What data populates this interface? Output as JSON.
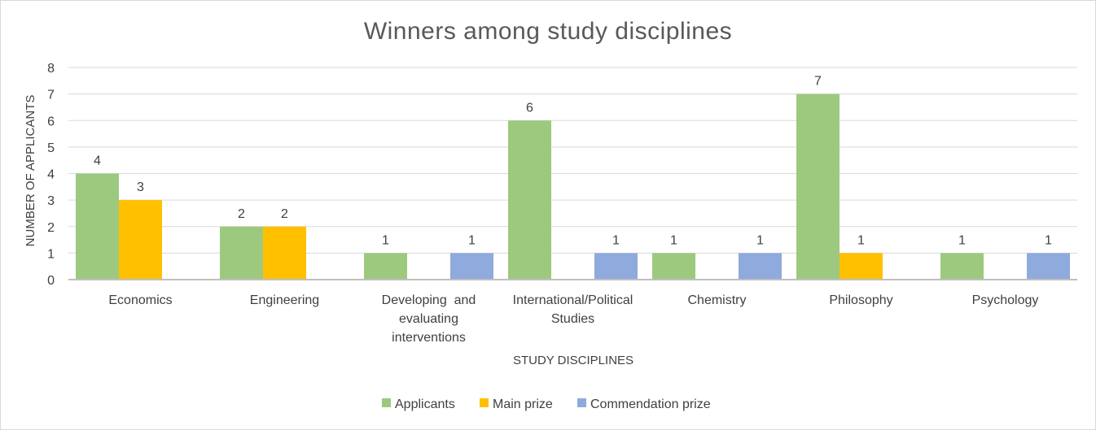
{
  "chart_data": {
    "type": "bar",
    "title": "Winners among study disciplines",
    "xlabel": "STUDY DISCIPLINES",
    "ylabel": "NUMBER OF APPLICANTS",
    "ylim": [
      0,
      8
    ],
    "yticks": [
      "0",
      "1",
      "2",
      "3",
      "4",
      "5",
      "6",
      "7",
      "8"
    ],
    "grid": true,
    "legend_position": "bottom",
    "categories": [
      [
        "Economics"
      ],
      [
        "Engineering"
      ],
      [
        "Developing  and",
        "evaluating",
        "interventions"
      ],
      [
        "International/Political",
        "Studies"
      ],
      [
        "Chemistry"
      ],
      [
        "Philosophy"
      ],
      [
        "Psychology"
      ]
    ],
    "series": [
      {
        "name": "Applicants",
        "color": "#9dc97f",
        "values": [
          4,
          2,
          1,
          6,
          1,
          7,
          1
        ]
      },
      {
        "name": "Main prize",
        "color": "#ffc000",
        "values": [
          3,
          2,
          null,
          null,
          null,
          1,
          null
        ]
      },
      {
        "name": "Commendation prize",
        "color": "#8faadc",
        "values": [
          null,
          null,
          1,
          1,
          1,
          null,
          1
        ]
      }
    ]
  }
}
